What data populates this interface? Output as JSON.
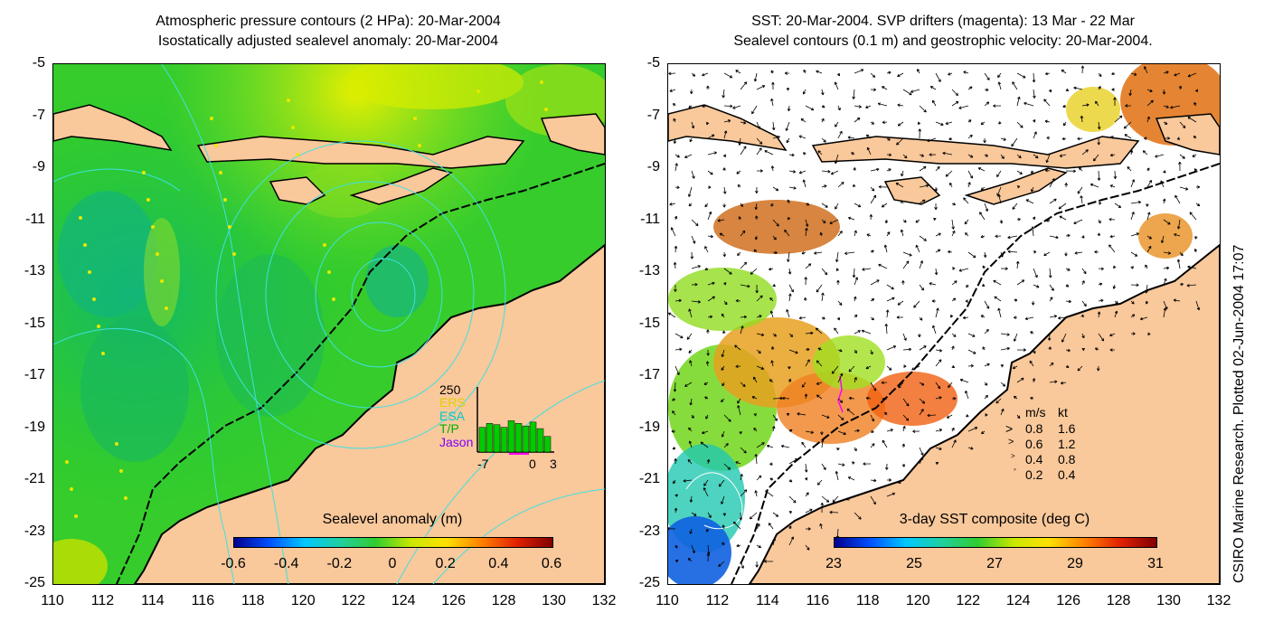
{
  "left_panel": {
    "title_line1": "Atmospheric pressure contours (2 HPa): 20-Mar-2004",
    "title_line2": "Isostatically adjusted sealevel anomaly: 20-Mar-2004",
    "colorbar": {
      "title": "Sealevel anomaly (m)",
      "ticks": [
        "-0.6",
        "-0.4",
        "-0.2",
        "0",
        "0.2",
        "0.4",
        "0.6"
      ],
      "range": [
        -0.6,
        0.6
      ]
    },
    "histogram": {
      "ymax_label": "250",
      "series_labels": [
        {
          "name": "ERS",
          "color": "#e0d000"
        },
        {
          "name": "ESA",
          "color": "#00c8c8"
        },
        {
          "name": "T/P",
          "color": "#00b000"
        },
        {
          "name": "Jason",
          "color": "#8000ff"
        }
      ],
      "x_ticks": [
        "-7",
        "0",
        "3"
      ],
      "bars": [
        95,
        110,
        105,
        95,
        120,
        110,
        100,
        115,
        90,
        60
      ]
    }
  },
  "right_panel": {
    "title_line1": "SST: 20-Mar-2004. SVP drifters (magenta): 13 Mar - 22 Mar",
    "title_line2": "Sealevel contours (0.1 m) and geostrophic velocity: 20-Mar-2004.",
    "colorbar": {
      "title": "3-day SST composite (deg C)",
      "ticks": [
        "23",
        "25",
        "27",
        "29",
        "31"
      ],
      "range": [
        23,
        31
      ]
    },
    "vector_legend": {
      "header_ms": "m/s",
      "header_kt": "kt",
      "rows": [
        {
          "ms": "0.8",
          "kt": "1.6"
        },
        {
          "ms": "0.6",
          "kt": "1.2"
        },
        {
          "ms": "0.4",
          "kt": "0.8"
        },
        {
          "ms": "0.2",
          "kt": "0.4"
        }
      ]
    }
  },
  "axes": {
    "lat_ticks": [
      "-5",
      "-7",
      "-9",
      "-11",
      "-13",
      "-15",
      "-17",
      "-19",
      "-21",
      "-23",
      "-25"
    ],
    "lon_ticks": [
      "110",
      "112",
      "114",
      "116",
      "118",
      "120",
      "122",
      "124",
      "126",
      "128",
      "130",
      "132"
    ],
    "lat_range": [
      -25,
      -5
    ],
    "lon_range": [
      110,
      132
    ]
  },
  "credit": "CSIRO Marine Research. Plotted 02-Jun-2004 17:07",
  "colors": {
    "land": "#f9c89b",
    "sea_green": "#22cc22",
    "sea_yellow": "#d8e800",
    "coast": "#000000",
    "contour": "#40e0e0"
  }
}
